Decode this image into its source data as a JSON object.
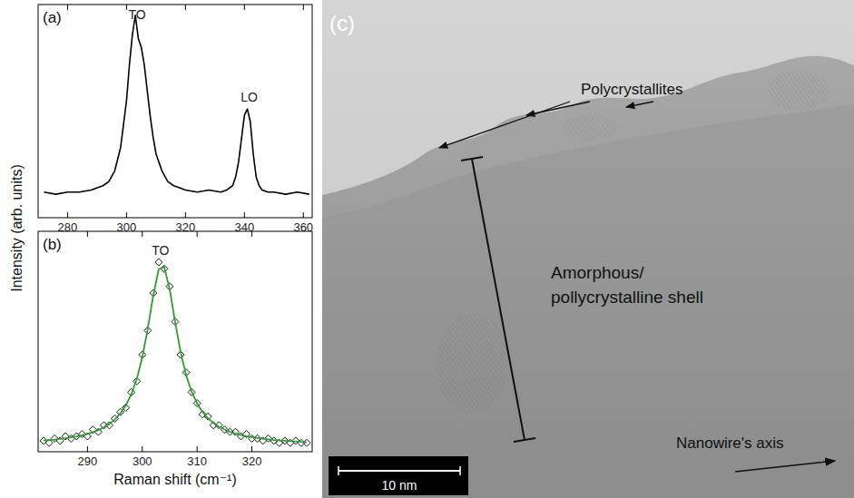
{
  "chart_data": [
    {
      "type": "line",
      "panel_label": "(a)",
      "x": [
        272,
        276,
        280,
        284,
        288,
        292,
        294,
        296,
        298,
        300,
        301,
        302,
        303,
        304,
        305,
        306,
        307,
        308,
        309,
        310,
        312,
        314,
        316,
        318,
        320,
        324,
        328,
        332,
        334,
        336,
        337,
        338,
        339,
        340,
        341,
        342,
        343,
        344,
        345,
        346,
        348,
        350,
        354,
        358,
        362
      ],
      "series": [
        {
          "type": "line",
          "color": "#000000",
          "values": [
            0.12,
            0.11,
            0.12,
            0.12,
            0.13,
            0.15,
            0.17,
            0.22,
            0.33,
            0.55,
            0.72,
            0.86,
            0.95,
            0.84,
            0.8,
            0.72,
            0.6,
            0.48,
            0.38,
            0.3,
            0.22,
            0.17,
            0.15,
            0.14,
            0.13,
            0.12,
            0.13,
            0.12,
            0.13,
            0.15,
            0.19,
            0.26,
            0.37,
            0.48,
            0.51,
            0.45,
            0.3,
            0.19,
            0.15,
            0.13,
            0.12,
            0.12,
            0.11,
            0.12,
            0.11
          ]
        }
      ],
      "annotations": [
        {
          "text": "TO",
          "x": 303
        },
        {
          "text": "LO",
          "x": 341
        }
      ],
      "xlim": [
        270,
        363
      ],
      "xticks": [
        280,
        300,
        320,
        340,
        360
      ],
      "ylim": [
        0,
        1
      ],
      "tick_labels": "x"
    },
    {
      "type": "scatter",
      "panel_label": "(b)",
      "x_label": "Raman shift (cm⁻¹)",
      "x": [
        282,
        283,
        284,
        285,
        286,
        287,
        288,
        289,
        290,
        291,
        292,
        293,
        294,
        295,
        296,
        297,
        298,
        299,
        300,
        301,
        302,
        303,
        304,
        305,
        306,
        307,
        308,
        309,
        310,
        311,
        312,
        313,
        314,
        315,
        316,
        317,
        318,
        319,
        320,
        321,
        322,
        323,
        324,
        325,
        326,
        327,
        328,
        329,
        330
      ],
      "series": [
        {
          "type": "scatter",
          "marker": "diamond",
          "color": "#000000",
          "values": [
            0.05,
            0.04,
            0.06,
            0.05,
            0.07,
            0.06,
            0.07,
            0.08,
            0.07,
            0.1,
            0.09,
            0.12,
            0.12,
            0.15,
            0.18,
            0.2,
            0.27,
            0.32,
            0.44,
            0.55,
            0.72,
            0.86,
            0.83,
            0.75,
            0.59,
            0.44,
            0.36,
            0.27,
            0.22,
            0.17,
            0.16,
            0.12,
            0.12,
            0.1,
            0.09,
            0.09,
            0.07,
            0.08,
            0.06,
            0.06,
            0.05,
            0.06,
            0.05,
            0.04,
            0.05,
            0.04,
            0.05,
            0.04,
            0.04
          ]
        },
        {
          "type": "line",
          "color": "#2ca02c",
          "values": [
            0.051,
            0.053,
            0.055,
            0.058,
            0.061,
            0.065,
            0.069,
            0.075,
            0.081,
            0.089,
            0.098,
            0.111,
            0.126,
            0.146,
            0.174,
            0.21,
            0.26,
            0.33,
            0.428,
            0.558,
            0.708,
            0.827,
            0.839,
            0.737,
            0.588,
            0.452,
            0.348,
            0.273,
            0.219,
            0.18,
            0.151,
            0.13,
            0.113,
            0.101,
            0.09,
            0.082,
            0.076,
            0.07,
            0.066,
            0.062,
            0.059,
            0.056,
            0.053,
            0.051,
            0.05,
            0.048,
            0.047,
            0.045,
            0.044
          ]
        }
      ],
      "annotations": [
        {
          "text": "TO",
          "x": 303
        }
      ],
      "xlim": [
        281,
        331
      ],
      "xticks": [
        290,
        300,
        310,
        320
      ],
      "ylim": [
        0,
        1
      ],
      "tick_labels": "x"
    }
  ],
  "y_label": "Intensity (arb. units)",
  "image_panel": {
    "panel_label": "(c)",
    "arrow_label": "Polycrystallites",
    "shell_label": [
      "Amorphous/",
      "pollycrystalline shell"
    ],
    "axis_label": "Nanowire's axis",
    "scale_bar": "10 nm"
  }
}
